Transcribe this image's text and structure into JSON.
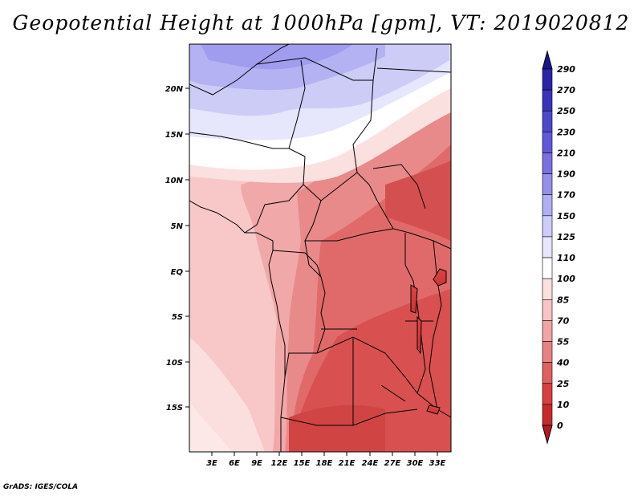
{
  "title": "Geopotential Height at 1000hPa [gpm], VT: 2019020812",
  "credit": "GrADS: IGES/COLA",
  "map": {
    "lat_labels": [
      "20N",
      "15N",
      "10N",
      "5N",
      "EQ",
      "5S",
      "10S",
      "15S"
    ],
    "lon_labels": [
      "3E",
      "6E",
      "9E",
      "12E",
      "15E",
      "18E",
      "21E",
      "24E",
      "27E",
      "30E",
      "33E"
    ]
  },
  "colorbar": {
    "labels": [
      "290",
      "270",
      "250",
      "230",
      "210",
      "190",
      "170",
      "150",
      "125",
      "110",
      "100",
      "85",
      "70",
      "55",
      "40",
      "25",
      "10",
      "0"
    ],
    "colors": [
      "#1a1490",
      "#2a22a8",
      "#3a34bc",
      "#4c48cc",
      "#6058d8",
      "#7a70e2",
      "#9690ec",
      "#b0aef4",
      "#cccdf8",
      "#e6e6fc",
      "#ffffff",
      "#fce0e0",
      "#f8c4c4",
      "#f0a4a4",
      "#e88282",
      "#e06060",
      "#d84040",
      "#c82a2a",
      "#b41a1a"
    ]
  }
}
